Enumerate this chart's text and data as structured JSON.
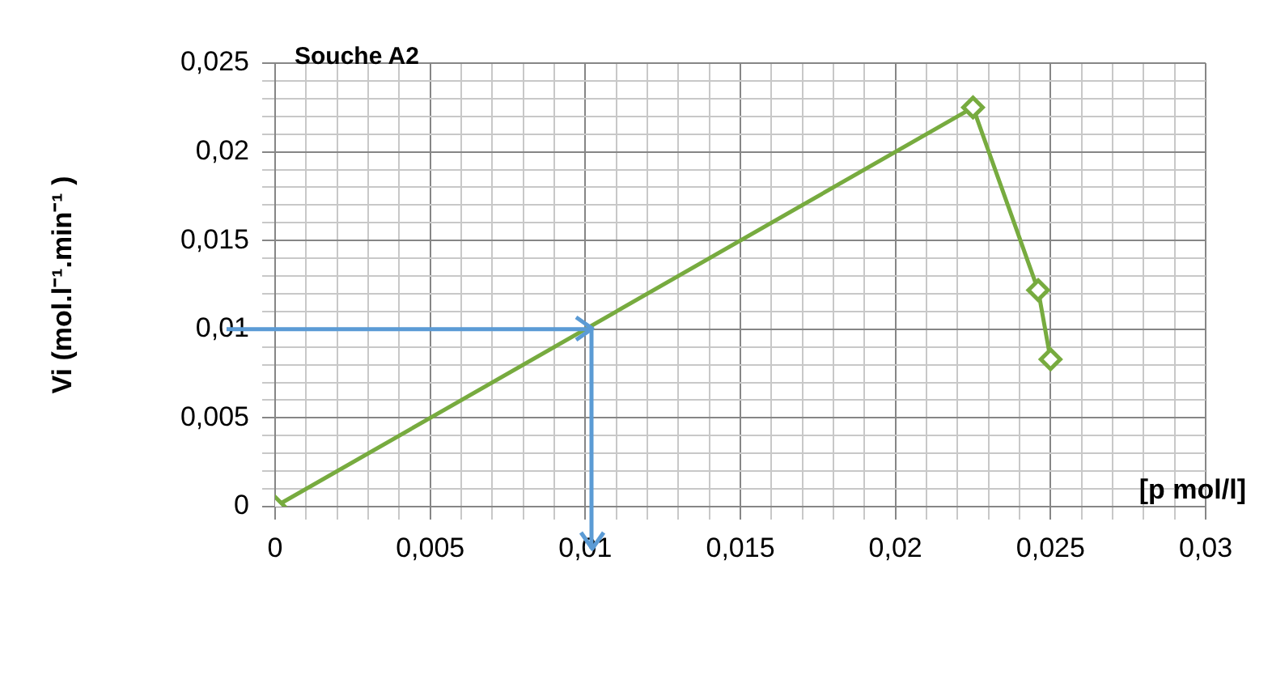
{
  "chart_data": {
    "type": "line",
    "title": "Souche A2",
    "xlabel": "[p mol/l]",
    "ylabel": "Vi (mol.l⁻¹.min⁻¹ )",
    "x": [
      0,
      0.0225,
      0.0246,
      0.025
    ],
    "series": [
      {
        "color": "#77ab3f",
        "values": [
          0,
          0.0225,
          0.0122,
          0.0083
        ]
      }
    ],
    "marker": "diamond",
    "legend": false,
    "grid": true,
    "xlim": [
      0,
      0.03
    ],
    "ylim": [
      0,
      0.025
    ],
    "xticks": [
      {
        "value": 0,
        "label": "0"
      },
      {
        "value": 0.001,
        "label": null
      },
      {
        "value": 0.002,
        "label": null
      },
      {
        "value": 0.003,
        "label": null
      },
      {
        "value": 0.004,
        "label": null
      },
      {
        "value": 0.005,
        "label": "0,005"
      },
      {
        "value": 0.006,
        "label": null
      },
      {
        "value": 0.007,
        "label": null
      },
      {
        "value": 0.008,
        "label": null
      },
      {
        "value": 0.009,
        "label": null
      },
      {
        "value": 0.01,
        "label": "0,01"
      },
      {
        "value": 0.011,
        "label": null
      },
      {
        "value": 0.012,
        "label": null
      },
      {
        "value": 0.013,
        "label": null
      },
      {
        "value": 0.014,
        "label": null
      },
      {
        "value": 0.015,
        "label": "0,015"
      },
      {
        "value": 0.016,
        "label": null
      },
      {
        "value": 0.017,
        "label": null
      },
      {
        "value": 0.018,
        "label": null
      },
      {
        "value": 0.019,
        "label": null
      },
      {
        "value": 0.02,
        "label": "0,02"
      },
      {
        "value": 0.021,
        "label": null
      },
      {
        "value": 0.022,
        "label": null
      },
      {
        "value": 0.023,
        "label": null
      },
      {
        "value": 0.024,
        "label": null
      },
      {
        "value": 0.025,
        "label": "0,025"
      },
      {
        "value": 0.026,
        "label": null
      },
      {
        "value": 0.027,
        "label": null
      },
      {
        "value": 0.028,
        "label": null
      },
      {
        "value": 0.029,
        "label": null
      },
      {
        "value": 0.03,
        "label": "0,03"
      }
    ],
    "yticks": [
      {
        "value": 0,
        "label": "0"
      },
      {
        "value": 0.001,
        "label": null
      },
      {
        "value": 0.002,
        "label": null
      },
      {
        "value": 0.003,
        "label": null
      },
      {
        "value": 0.004,
        "label": null
      },
      {
        "value": 0.005,
        "label": "0,005"
      },
      {
        "value": 0.006,
        "label": null
      },
      {
        "value": 0.007,
        "label": null
      },
      {
        "value": 0.008,
        "label": null
      },
      {
        "value": 0.009,
        "label": null
      },
      {
        "value": 0.01,
        "label": "0,01"
      },
      {
        "value": 0.011,
        "label": null
      },
      {
        "value": 0.012,
        "label": null
      },
      {
        "value": 0.013,
        "label": null
      },
      {
        "value": 0.014,
        "label": null
      },
      {
        "value": 0.015,
        "label": "0,015"
      },
      {
        "value": 0.016,
        "label": null
      },
      {
        "value": 0.017,
        "label": null
      },
      {
        "value": 0.018,
        "label": null
      },
      {
        "value": 0.019,
        "label": null
      },
      {
        "value": 0.02,
        "label": "0,02"
      },
      {
        "value": 0.021,
        "label": null
      },
      {
        "value": 0.022,
        "label": null
      },
      {
        "value": 0.023,
        "label": null
      },
      {
        "value": 0.024,
        "label": null
      },
      {
        "value": 0.025,
        "label": "0,025"
      }
    ],
    "ref_lines": [
      {
        "axis": "y",
        "value": 0.01,
        "color": "#5b9bd5"
      },
      {
        "axis": "x",
        "value": 0.0102,
        "color": "#5b9bd5"
      }
    ]
  }
}
